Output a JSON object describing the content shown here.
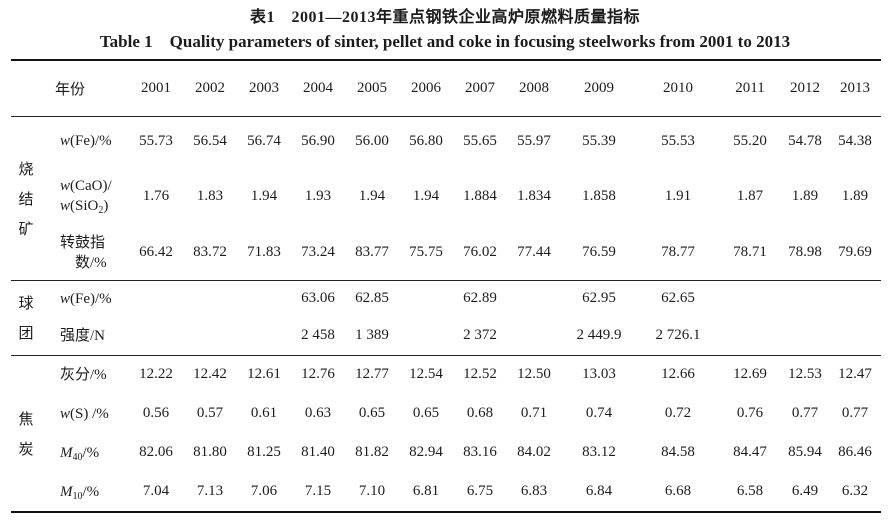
{
  "page": {
    "title_cn": "表1　2001—2013年重点钢铁企业高炉原燃料质量指标",
    "title_en": "Table 1　Quality parameters of sinter, pellet and coke in focusing steelworks from 2001 to 2013"
  },
  "table": {
    "year_header": "年份",
    "years": [
      "2001",
      "2002",
      "2003",
      "2004",
      "2005",
      "2006",
      "2007",
      "2008",
      "2009",
      "2010",
      "2011",
      "2012",
      "2013"
    ],
    "groups": [
      {
        "id": "sinter",
        "name": "烧结矿",
        "chars": [
          "烧",
          "结",
          "矿"
        ],
        "rows": [
          {
            "label_text": "w(Fe)/%",
            "label_lines": [
              {
                "segs": [
                  {
                    "t": "w",
                    "i": true
                  },
                  {
                    "t": "(Fe)/%"
                  }
                ]
              }
            ],
            "values": [
              "55.73",
              "56.54",
              "56.74",
              "56.90",
              "56.00",
              "56.80",
              "55.65",
              "55.97",
              "55.39",
              "55.53",
              "55.20",
              "54.78",
              "54.38"
            ]
          },
          {
            "label_text": "w(CaO)/w(SiO2)",
            "label_lines": [
              {
                "segs": [
                  {
                    "t": "w",
                    "i": true
                  },
                  {
                    "t": "(CaO)/"
                  }
                ]
              },
              {
                "segs": [
                  {
                    "t": "w",
                    "i": true
                  },
                  {
                    "t": "(SiO"
                  },
                  {
                    "t": "2",
                    "sub": true
                  },
                  {
                    "t": ")"
                  }
                ]
              }
            ],
            "values": [
              "1.76",
              "1.83",
              "1.94",
              "1.93",
              "1.94",
              "1.94",
              "1.884",
              "1.834",
              "1.858",
              "1.91",
              "1.87",
              "1.89",
              "1.89"
            ]
          },
          {
            "label_text": "转鼓指数/%",
            "label_lines": [
              {
                "segs": [
                  {
                    "t": "转鼓指"
                  }
                ]
              },
              {
                "segs": [
                  {
                    "t": "数/%"
                  }
                ],
                "indent": true
              }
            ],
            "values": [
              "66.42",
              "83.72",
              "71.83",
              "73.24",
              "83.77",
              "75.75",
              "76.02",
              "77.44",
              "76.59",
              "78.77",
              "78.71",
              "78.98",
              "79.69"
            ]
          }
        ]
      },
      {
        "id": "pellet",
        "name": "球团",
        "chars": [
          "球",
          "团"
        ],
        "rows": [
          {
            "label_text": "w(Fe)/%",
            "label_lines": [
              {
                "segs": [
                  {
                    "t": "w",
                    "i": true
                  },
                  {
                    "t": "(Fe)/%"
                  }
                ]
              }
            ],
            "values": [
              "",
              "",
              "",
              "63.06",
              "62.85",
              "",
              "62.89",
              "",
              "62.95",
              "62.65",
              "",
              "",
              ""
            ]
          },
          {
            "label_text": "强度/N",
            "label_lines": [
              {
                "segs": [
                  {
                    "t": "强度/N"
                  }
                ]
              }
            ],
            "values": [
              "",
              "",
              "",
              "2 458",
              "1 389",
              "",
              "2 372",
              "",
              "2 449.9",
              "2 726.1",
              "",
              "",
              ""
            ]
          }
        ]
      },
      {
        "id": "coke",
        "name": "焦炭",
        "chars": [
          "焦",
          "炭"
        ],
        "rows": [
          {
            "label_text": "灰分/%",
            "label_lines": [
              {
                "segs": [
                  {
                    "t": "灰分/%"
                  }
                ]
              }
            ],
            "values": [
              "12.22",
              "12.42",
              "12.61",
              "12.76",
              "12.77",
              "12.54",
              "12.52",
              "12.50",
              "13.03",
              "12.66",
              "12.69",
              "12.53",
              "12.47"
            ]
          },
          {
            "label_text": "w(S) /%",
            "label_lines": [
              {
                "segs": [
                  {
                    "t": "w",
                    "i": true
                  },
                  {
                    "t": "(S) /%"
                  }
                ]
              }
            ],
            "values": [
              "0.56",
              "0.57",
              "0.61",
              "0.63",
              "0.65",
              "0.65",
              "0.68",
              "0.71",
              "0.74",
              "0.72",
              "0.76",
              "0.77",
              "0.77"
            ]
          },
          {
            "label_text": "M40/%",
            "label_lines": [
              {
                "segs": [
                  {
                    "t": "M",
                    "i": true
                  },
                  {
                    "t": "40",
                    "sub": true
                  },
                  {
                    "t": "/%"
                  }
                ]
              }
            ],
            "values": [
              "82.06",
              "81.80",
              "81.25",
              "81.40",
              "81.82",
              "82.94",
              "83.16",
              "84.02",
              "83.12",
              "84.58",
              "84.47",
              "85.94",
              "86.46"
            ]
          },
          {
            "label_text": "M10/%",
            "label_lines": [
              {
                "segs": [
                  {
                    "t": "M",
                    "i": true
                  },
                  {
                    "t": "10",
                    "sub": true
                  },
                  {
                    "t": "/%"
                  }
                ]
              }
            ],
            "values": [
              "7.04",
              "7.13",
              "7.06",
              "7.15",
              "7.10",
              "6.81",
              "6.75",
              "6.83",
              "6.84",
              "6.68",
              "6.58",
              "6.49",
              "6.32"
            ]
          }
        ]
      }
    ]
  }
}
